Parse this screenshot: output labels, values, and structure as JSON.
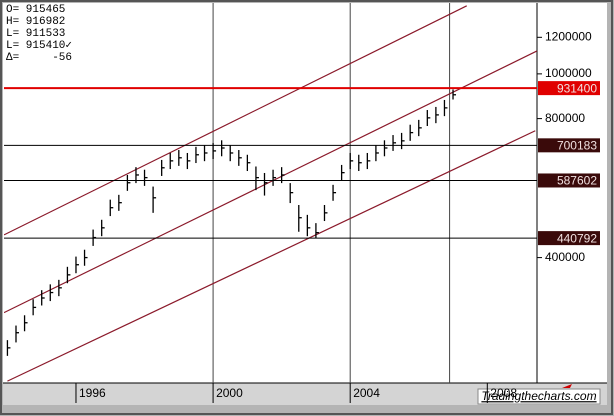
{
  "chart_data": {
    "type": "ohlc",
    "readout": [
      "O= 915465",
      "H= 916982",
      "L= 911533",
      "L= 915410✓",
      "Δ=     -56"
    ],
    "watermark": "Tradingthecharts.com",
    "x": [
      1994.0,
      1994.25,
      1994.5,
      1994.75,
      1995.0,
      1995.25,
      1995.5,
      1995.75,
      1996.0,
      1996.25,
      1996.5,
      1996.75,
      1997.0,
      1997.25,
      1997.5,
      1997.75,
      1998.0,
      1998.25,
      1998.5,
      1998.75,
      1999.0,
      1999.25,
      1999.5,
      1999.75,
      2000.0,
      2000.25,
      2000.5,
      2000.75,
      2001.0,
      2001.25,
      2001.5,
      2001.75,
      2002.0,
      2002.25,
      2002.5,
      2002.75,
      2003.0,
      2003.25,
      2003.5,
      2003.75,
      2004.0,
      2004.25,
      2004.5,
      2004.75,
      2005.0,
      2005.25,
      2005.5,
      2005.75,
      2006.0,
      2006.25,
      2006.5,
      2006.75,
      2007.0
    ],
    "high": [
      265000,
      285000,
      300000,
      325000,
      340000,
      350000,
      358000,
      382000,
      402000,
      416000,
      460000,
      483000,
      534000,
      547000,
      604000,
      628000,
      620000,
      570000,
      651000,
      674000,
      684000,
      674000,
      695000,
      701000,
      708000,
      718000,
      701000,
      684000,
      668000,
      630000,
      610000,
      620000,
      628000,
      580000,
      520000,
      495000,
      475000,
      520000,
      575000,
      635000,
      674000,
      668000,
      674000,
      701000,
      718000,
      737000,
      745000,
      776000,
      795000,
      835000,
      848000,
      878000,
      925000
    ],
    "low": [
      245000,
      262000,
      277000,
      300000,
      315000,
      322000,
      330000,
      352000,
      370000,
      384000,
      424000,
      445000,
      492000,
      505000,
      558000,
      580000,
      572000,
      500000,
      601000,
      622000,
      632000,
      622000,
      641000,
      647000,
      654000,
      663000,
      647000,
      632000,
      616000,
      560000,
      545000,
      572000,
      580000,
      525000,
      455000,
      445000,
      440000,
      480000,
      531000,
      587000,
      622000,
      616000,
      622000,
      647000,
      663000,
      681000,
      687000,
      716000,
      733000,
      771000,
      782000,
      810000,
      880000
    ],
    "close": [
      255000,
      275000,
      289000,
      312000,
      327000,
      336000,
      344000,
      367000,
      386000,
      400000,
      442000,
      464000,
      513000,
      526000,
      581000,
      604000,
      596000,
      539000,
      626000,
      648000,
      658000,
      648000,
      668000,
      674000,
      681000,
      691000,
      674000,
      658000,
      642000,
      596000,
      581000,
      596000,
      604000,
      553000,
      488000,
      464000,
      453000,
      500000,
      553000,
      611000,
      648000,
      642000,
      648000,
      674000,
      691000,
      709000,
      716000,
      746000,
      764000,
      803000,
      815000,
      844000,
      901000
    ],
    "color": "#000000",
    "log_scale": true,
    "xlim": [
      1993.9,
      2009.45
    ],
    "xticks": [
      1996,
      2000,
      2004,
      2008
    ],
    "ylim": [
      214000,
      1424000
    ],
    "yticks": [
      400000,
      800000,
      1000000,
      1200000
    ],
    "vlines": [
      2000,
      2004,
      2006.9
    ],
    "trendlines": [
      {
        "x": [
          1993.9,
          2007.4
        ],
        "values": [
          448000,
          1404000
        ],
        "color": "#8b1a2b"
      },
      {
        "x": [
          1993.9,
          2009.45
        ],
        "values": [
          304000,
          1121000
        ],
        "color": "#8b1a2b"
      },
      {
        "x": [
          1994.0,
          2009.4
        ],
        "values": [
          216000,
          753000
        ],
        "color": "#8b1a2b"
      }
    ],
    "levels": [
      {
        "value": 931400,
        "color": "#e00000",
        "label_bg": "#e00000"
      },
      {
        "value": 700183,
        "color": "#000000",
        "label_bg": "#3a0a0a"
      },
      {
        "value": 587602,
        "color": "#000000",
        "label_bg": "#3a0a0a"
      },
      {
        "value": 440792,
        "color": "#000000",
        "label_bg": "#3a0a0a"
      }
    ]
  }
}
